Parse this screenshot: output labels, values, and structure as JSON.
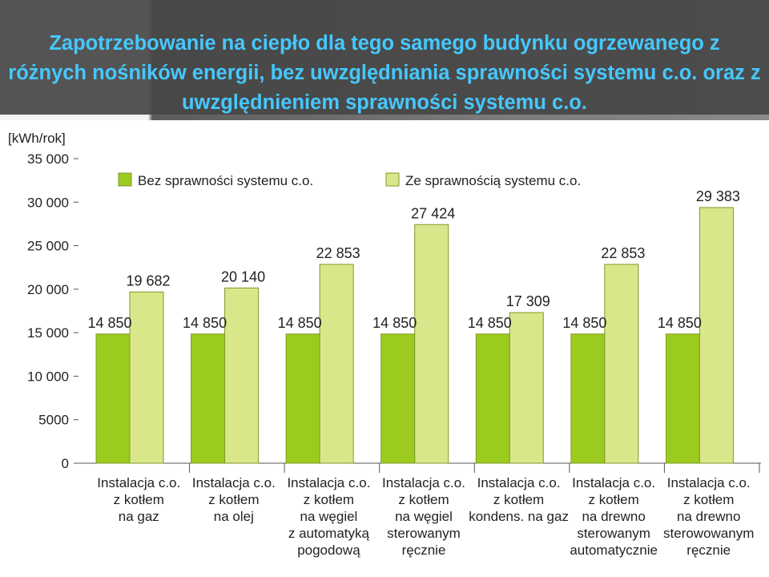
{
  "title": "Zapotrzebowanie na ciepło dla tego samego budynku ogrzewanego z różnych nośników energii, bez uwzględniania sprawności systemu c.o. oraz z uwzględnieniem sprawności systemu c.o.",
  "colors": {
    "title": "#45c8ff",
    "series_1": "#9ccb1f",
    "series_2": "#d9e78a",
    "bar_border": "#7c9a28"
  },
  "chart_data": {
    "type": "bar",
    "ylabel": "[kWh/rok]",
    "ylim": [
      0,
      35000
    ],
    "yticks": [
      {
        "value": 0,
        "label": "0"
      },
      {
        "value": 5000,
        "label": "5000"
      },
      {
        "value": 10000,
        "label": "10 000"
      },
      {
        "value": 15000,
        "label": "15 000"
      },
      {
        "value": 20000,
        "label": "20 000"
      },
      {
        "value": 25000,
        "label": "25 000"
      },
      {
        "value": 30000,
        "label": "30 000"
      },
      {
        "value": 35000,
        "label": "35 000"
      }
    ],
    "grid": false,
    "legend_position": "top",
    "categories": [
      [
        "Instalacja c.o.",
        "z kotłem",
        "na gaz"
      ],
      [
        "Instalacja c.o.",
        "z kotłem",
        "na olej"
      ],
      [
        "Instalacja c.o.",
        "z kotłem",
        "na węgiel",
        "z automatyką",
        "pogodową"
      ],
      [
        "Instalacja c.o.",
        "z kotłem",
        "na węgiel",
        "sterowanym",
        "ręcznie"
      ],
      [
        "Instalacja c.o.",
        "z kotłem",
        "kondens. na gaz"
      ],
      [
        "Instalacja c.o.",
        "z kotłem",
        "na drewno",
        "sterowanym",
        "automatycznie"
      ],
      [
        "Instalacja c.o.",
        "z kotłem",
        "na drewno",
        "sterowowanym",
        "ręcznie"
      ]
    ],
    "series": [
      {
        "name": "Bez sprawności systemu c.o.",
        "values": [
          14850,
          14850,
          14850,
          14850,
          14850,
          14850,
          14850
        ],
        "labels": [
          "14 850",
          "14 850",
          "14 850",
          "14 850",
          "14 850",
          "14 850",
          "14 850"
        ]
      },
      {
        "name": "Ze sprawnością systemu c.o.",
        "values": [
          19682,
          20140,
          22853,
          27424,
          17309,
          22853,
          29383
        ],
        "labels": [
          "19 682",
          "20 140",
          "22 853",
          "27 424",
          "17 309",
          "22 853",
          "29 383"
        ]
      }
    ]
  }
}
